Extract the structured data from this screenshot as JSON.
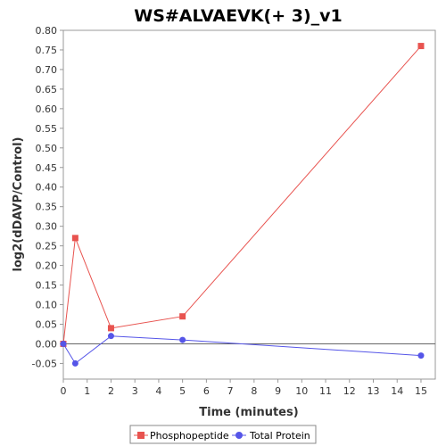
{
  "chart_data": {
    "type": "line",
    "title": "WS#ALVAEVK(+ 3)_v1",
    "xlabel": "Time (minutes)",
    "ylabel": "log2(dDAVP/Control)",
    "xlim": [
      0,
      15.6
    ],
    "ylim": [
      -0.09,
      0.8
    ],
    "xticks": [
      0,
      1,
      2,
      3,
      4,
      5,
      6,
      7,
      8,
      9,
      10,
      11,
      12,
      13,
      14,
      15
    ],
    "yticks": [
      -0.05,
      0.0,
      0.05,
      0.1,
      0.15,
      0.2,
      0.25,
      0.3,
      0.35,
      0.4,
      0.45,
      0.5,
      0.55,
      0.6,
      0.65,
      0.7,
      0.75,
      0.8
    ],
    "ytick_labels": [
      "-0.05",
      "0.00",
      "0.05",
      "0.10",
      "0.15",
      "0.20",
      "0.25",
      "0.30",
      "0.35",
      "0.40",
      "0.45",
      "0.50",
      "0.55",
      "0.60",
      "0.65",
      "0.70",
      "0.75",
      "0.80"
    ],
    "grid": false,
    "zero_line": true,
    "legend_position": "bottom",
    "series": [
      {
        "name": "Phosphopeptide",
        "marker": "square",
        "color": "#e8534f",
        "x": [
          0,
          0.5,
          2,
          5,
          15
        ],
        "y": [
          0.0,
          0.27,
          0.04,
          0.07,
          0.76
        ]
      },
      {
        "name": "Total Protein",
        "marker": "circle",
        "color": "#5555e8",
        "x": [
          0,
          0.5,
          2,
          5,
          15
        ],
        "y": [
          0.0,
          -0.05,
          0.02,
          0.01,
          -0.03
        ]
      }
    ]
  }
}
